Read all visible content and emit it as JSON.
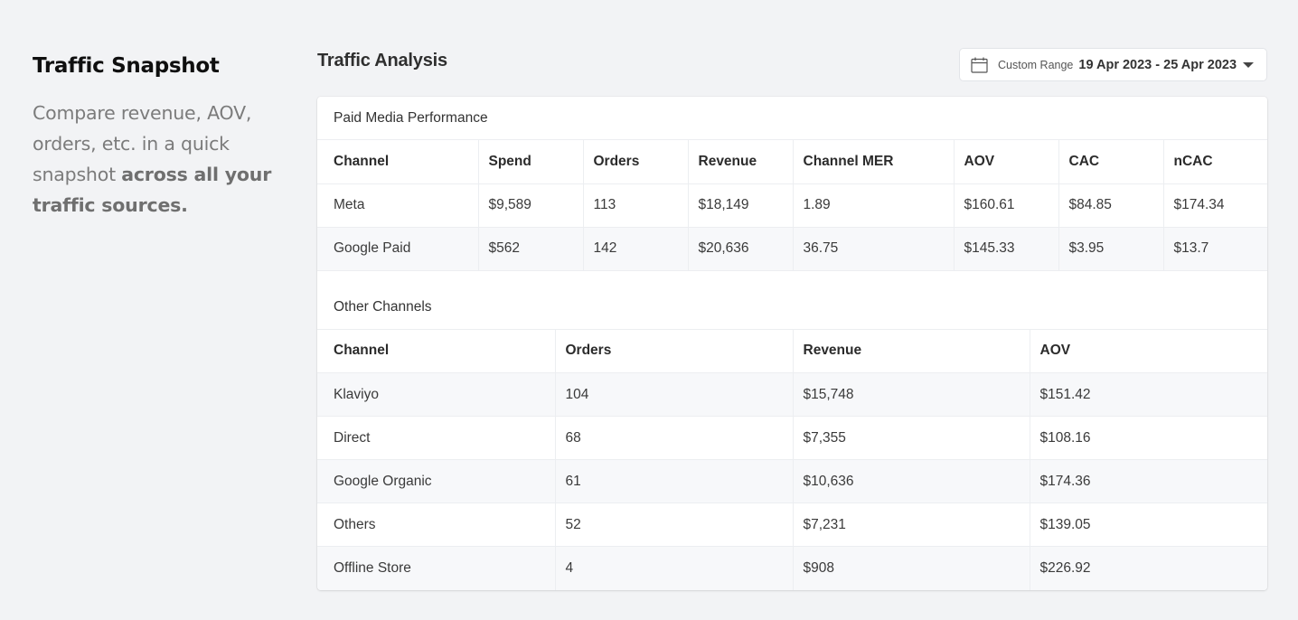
{
  "intro": {
    "title": "Traffic Snapshot",
    "description_plain": "Compare revenue, AOV, orders, etc. in a quick snapshot ",
    "description_bold": "across all your traffic sources."
  },
  "header": {
    "title": "Traffic Analysis",
    "date_picker": {
      "icon": "calendar-icon",
      "label": "Custom Range",
      "value": "19 Apr 2023 - 25 Apr 2023",
      "caret_icon": "caret-down-icon"
    }
  },
  "paid_media": {
    "title": "Paid Media Performance",
    "columns": [
      "Channel",
      "Spend",
      "Orders",
      "Revenue",
      "Channel MER",
      "AOV",
      "CAC",
      "nCAC"
    ],
    "rows": [
      [
        "Meta",
        "$9,589",
        "113",
        "$18,149",
        "1.89",
        "$160.61",
        "$84.85",
        "$174.34"
      ],
      [
        "Google Paid",
        "$562",
        "142",
        "$20,636",
        "36.75",
        "$145.33",
        "$3.95",
        "$13.7"
      ]
    ]
  },
  "other_channels": {
    "title": "Other Channels",
    "columns": [
      "Channel",
      "Orders",
      "Revenue",
      "AOV"
    ],
    "rows": [
      [
        "Klaviyo",
        "104",
        "$15,748",
        "$151.42"
      ],
      [
        "Direct",
        "68",
        "$7,355",
        "$108.16"
      ],
      [
        "Google Organic",
        "61",
        "$10,636",
        "$174.36"
      ],
      [
        "Others",
        "52",
        "$7,231",
        "$139.05"
      ],
      [
        "Offline Store",
        "4",
        "$908",
        "$226.92"
      ]
    ]
  },
  "colors": {
    "background": "#f2f3f5",
    "card": "#ffffff",
    "alt_row": "#f7f8fa",
    "border": "#eceef1"
  }
}
